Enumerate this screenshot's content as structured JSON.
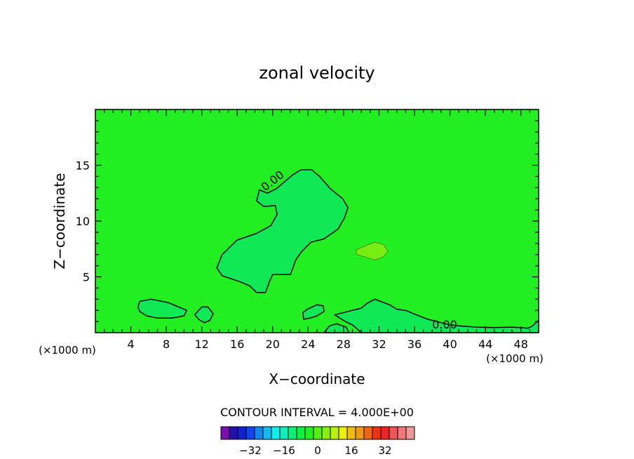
{
  "colors": {
    "field": "#22ee22",
    "region_negative": "#11e855",
    "region_positive": "#77ee11",
    "contour_line": "#000000",
    "colorbar": [
      "#7711aa",
      "#2211aa",
      "#1122cc",
      "#1144ee",
      "#1188ee",
      "#11bbee",
      "#11eeee",
      "#11eebb",
      "#11ee77",
      "#11ee44",
      "#22ee22",
      "#55ee11",
      "#88ee11",
      "#bbee11",
      "#eeee11",
      "#eebb11",
      "#ee9911",
      "#ee6611",
      "#ee3311",
      "#ee2222",
      "#ee5555",
      "#ee7777",
      "#ee9999"
    ]
  },
  "chart_data": {
    "type": "contour",
    "title": "zonal velocity",
    "xlabel": "X−coordinate",
    "ylabel": "Z−coordinate",
    "x_unit_left": "(×1000 m)",
    "x_unit_right": "(×1000 m)",
    "xlim": [
      0,
      50
    ],
    "ylim": [
      0,
      20
    ],
    "x_ticks": [
      4,
      8,
      12,
      16,
      20,
      24,
      28,
      32,
      36,
      40,
      44,
      48
    ],
    "y_ticks": [
      5,
      10,
      15
    ],
    "contour_labels": [
      "0.00",
      "0.00"
    ],
    "contour_interval_text": "CONTOUR INTERVAL = 4.000E+00",
    "colorbar_ticks": [
      "−32",
      "−16",
      "0",
      "16",
      "32"
    ],
    "regions": [
      {
        "name": "upper-cell",
        "sign": "negative",
        "outline": [
          [
            18.5,
            12.8
          ],
          [
            18.2,
            11.8
          ],
          [
            19,
            11.3
          ],
          [
            20.3,
            11.4
          ],
          [
            20.5,
            10.6
          ],
          [
            19.8,
            9.6
          ],
          [
            18.2,
            8.9
          ],
          [
            16,
            8.3
          ],
          [
            14.3,
            7
          ],
          [
            13.7,
            5.8
          ],
          [
            14.3,
            5.1
          ],
          [
            16.2,
            4.6
          ],
          [
            17.4,
            4.2
          ],
          [
            18.2,
            3.6
          ],
          [
            19.2,
            3.6
          ],
          [
            19.6,
            4.5
          ],
          [
            20,
            5.2
          ],
          [
            22,
            5.2
          ],
          [
            22.6,
            6.5
          ],
          [
            23.2,
            7.2
          ],
          [
            24.3,
            8.1
          ],
          [
            25.8,
            8.4
          ],
          [
            27.4,
            9.3
          ],
          [
            28.1,
            10.3
          ],
          [
            28.5,
            11.2
          ],
          [
            27.9,
            12
          ],
          [
            26.5,
            12.9
          ],
          [
            25.3,
            14
          ],
          [
            24.4,
            14.6
          ],
          [
            23.2,
            14.6
          ],
          [
            22.2,
            14.1
          ],
          [
            21.3,
            13.5
          ],
          [
            20.4,
            12.9
          ],
          [
            19.4,
            12.5
          ]
        ]
      },
      {
        "name": "positive-blob",
        "sign": "positive",
        "outline": [
          [
            29.4,
            7.4
          ],
          [
            30.5,
            7.8
          ],
          [
            31.5,
            8.1
          ],
          [
            32.5,
            7.9
          ],
          [
            33,
            7.3
          ],
          [
            32.5,
            6.8
          ],
          [
            31.5,
            6.5
          ],
          [
            30.4,
            6.8
          ],
          [
            29.5,
            7
          ]
        ]
      },
      {
        "name": "low-left-cell",
        "sign": "negative",
        "outline": [
          [
            4.8,
            2.3
          ],
          [
            5,
            2.8
          ],
          [
            6.3,
            3
          ],
          [
            8.2,
            2.7
          ],
          [
            9.4,
            2.3
          ],
          [
            10.3,
            2
          ],
          [
            10,
            1.5
          ],
          [
            8.6,
            1.3
          ],
          [
            7,
            1.3
          ],
          [
            5.8,
            1.5
          ],
          [
            5,
            1.9
          ]
        ]
      },
      {
        "name": "low-right-cell",
        "sign": "negative",
        "outline": [
          [
            27,
            1.6
          ],
          [
            28.5,
            1.9
          ],
          [
            30,
            2.2
          ],
          [
            30.6,
            2.6
          ],
          [
            31.5,
            3
          ],
          [
            32.2,
            2.8
          ],
          [
            33.2,
            2.5
          ],
          [
            34,
            2.1
          ],
          [
            35,
            2
          ],
          [
            36.2,
            1.6
          ],
          [
            37.5,
            1.2
          ],
          [
            39,
            0.9
          ],
          [
            40,
            0.7
          ],
          [
            41.2,
            0.6
          ],
          [
            43,
            0.5
          ],
          [
            45,
            0.45
          ],
          [
            47,
            0.5
          ],
          [
            48.8,
            0.4
          ],
          [
            49.3,
            0.6
          ],
          [
            49.7,
            0.9
          ],
          [
            50,
            1.1
          ],
          [
            50,
            0
          ],
          [
            30,
            0
          ],
          [
            29,
            0.7
          ],
          [
            28.2,
            1
          ]
        ]
      },
      {
        "name": "small-cell-a",
        "sign": "negative",
        "outline": [
          [
            11.2,
            1.6
          ],
          [
            12,
            2.3
          ],
          [
            12.7,
            2.3
          ],
          [
            13.3,
            1.7
          ],
          [
            12.9,
            1.1
          ],
          [
            12.3,
            0.9
          ],
          [
            11.8,
            1.1
          ]
        ]
      },
      {
        "name": "small-cell-b",
        "sign": "negative",
        "outline": [
          [
            23.4,
            1.8
          ],
          [
            23.9,
            2.1
          ],
          [
            25,
            2.5
          ],
          [
            25.7,
            2.4
          ],
          [
            25.8,
            1.9
          ],
          [
            25,
            1.5
          ],
          [
            24.2,
            1.3
          ],
          [
            23.5,
            1.2
          ]
        ]
      },
      {
        "name": "small-cell-c",
        "sign": "negative",
        "outline": [
          [
            25.8,
            0
          ],
          [
            26.4,
            0.6
          ],
          [
            27.2,
            0.8
          ],
          [
            28.3,
            0.5
          ],
          [
            28.6,
            0
          ]
        ]
      }
    ]
  }
}
